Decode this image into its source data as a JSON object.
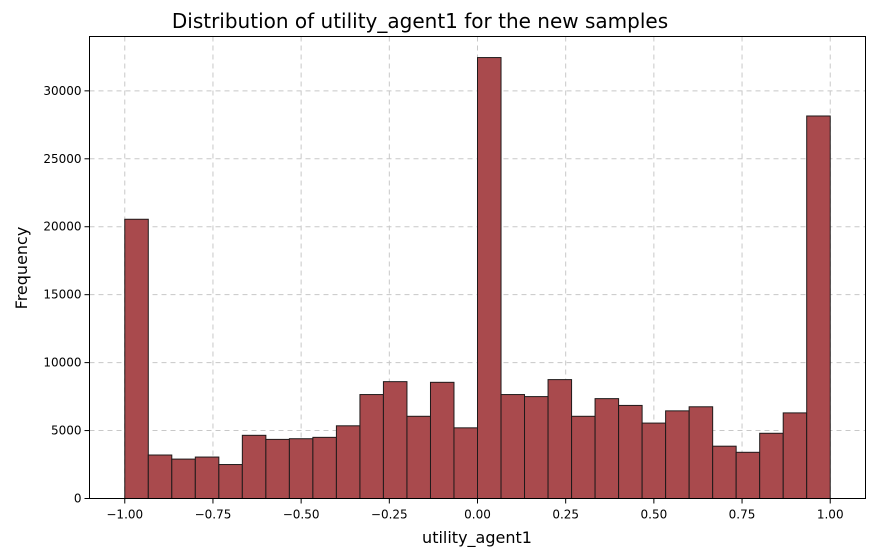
{
  "chart_data": {
    "type": "bar",
    "title": "Distribution of utility_agent1 for the new samples",
    "xlabel": "utility_agent1",
    "ylabel": "Frequency",
    "xlim": [
      -1.1,
      1.1
    ],
    "ylim": [
      0,
      34000
    ],
    "xticks": [
      -1.0,
      -0.75,
      -0.5,
      -0.25,
      0.0,
      0.25,
      0.5,
      0.75,
      1.0
    ],
    "xtick_labels": [
      "−1.00",
      "−0.75",
      "−0.50",
      "−0.25",
      "0.00",
      "0.25",
      "0.50",
      "0.75",
      "1.00"
    ],
    "yticks": [
      0,
      5000,
      10000,
      15000,
      20000,
      25000,
      30000
    ],
    "ytick_labels": [
      "0",
      "5000",
      "10000",
      "15000",
      "20000",
      "25000",
      "30000"
    ],
    "grid": true,
    "bin_edges": [
      -1.0,
      -0.9333,
      -0.8667,
      -0.8,
      -0.7333,
      -0.6667,
      -0.6,
      -0.5333,
      -0.4667,
      -0.4,
      -0.3333,
      -0.2667,
      -0.2,
      -0.1333,
      -0.0667,
      0.0,
      0.0667,
      0.1333,
      0.2,
      0.2667,
      0.3333,
      0.4,
      0.4667,
      0.5333,
      0.6,
      0.6667,
      0.7333,
      0.8,
      0.8667,
      0.9333,
      1.0
    ],
    "values": [
      20550,
      3200,
      2900,
      3050,
      2500,
      4650,
      4350,
      4400,
      4500,
      5350,
      7650,
      8600,
      6050,
      8550,
      5200,
      32450,
      7650,
      7500,
      8750,
      6050,
      7350,
      6850,
      5550,
      6450,
      6750,
      3850,
      3400,
      4800,
      6300,
      28150
    ],
    "colors": {
      "bar_fill": "#a94a4d",
      "bar_edge": "#1f1a1a",
      "grid": "#c8c8c8"
    }
  }
}
